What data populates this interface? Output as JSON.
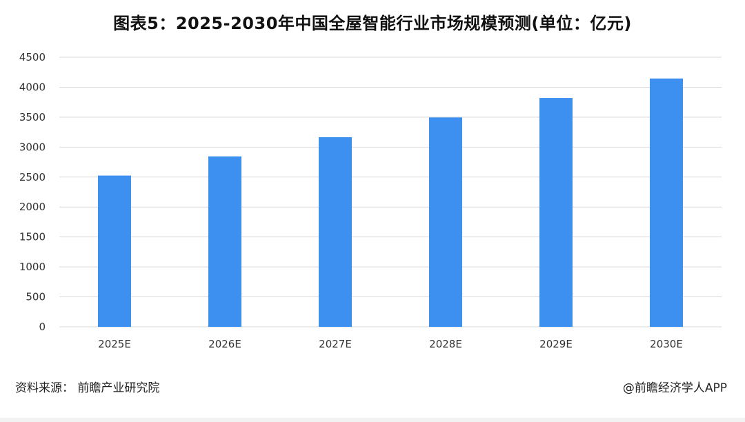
{
  "chart_data": {
    "type": "bar",
    "title": "图表5：2025-2030年中国全屋智能行业市场规模预测(单位：亿元)",
    "categories": [
      "2025E",
      "2026E",
      "2027E",
      "2028E",
      "2029E",
      "2030E"
    ],
    "values": [
      2525,
      2845,
      3165,
      3495,
      3820,
      4145
    ],
    "ylim": [
      0,
      4500
    ],
    "yticks": [
      0,
      500,
      1000,
      1500,
      2000,
      2500,
      3000,
      3500,
      4000,
      4500
    ],
    "grid": true,
    "bar_color": "#3d8ff0",
    "grid_color": "#d9d9d9"
  },
  "footer": {
    "source": "资料来源： 前瞻产业研究院",
    "credit": "@前瞻经济学人APP"
  }
}
